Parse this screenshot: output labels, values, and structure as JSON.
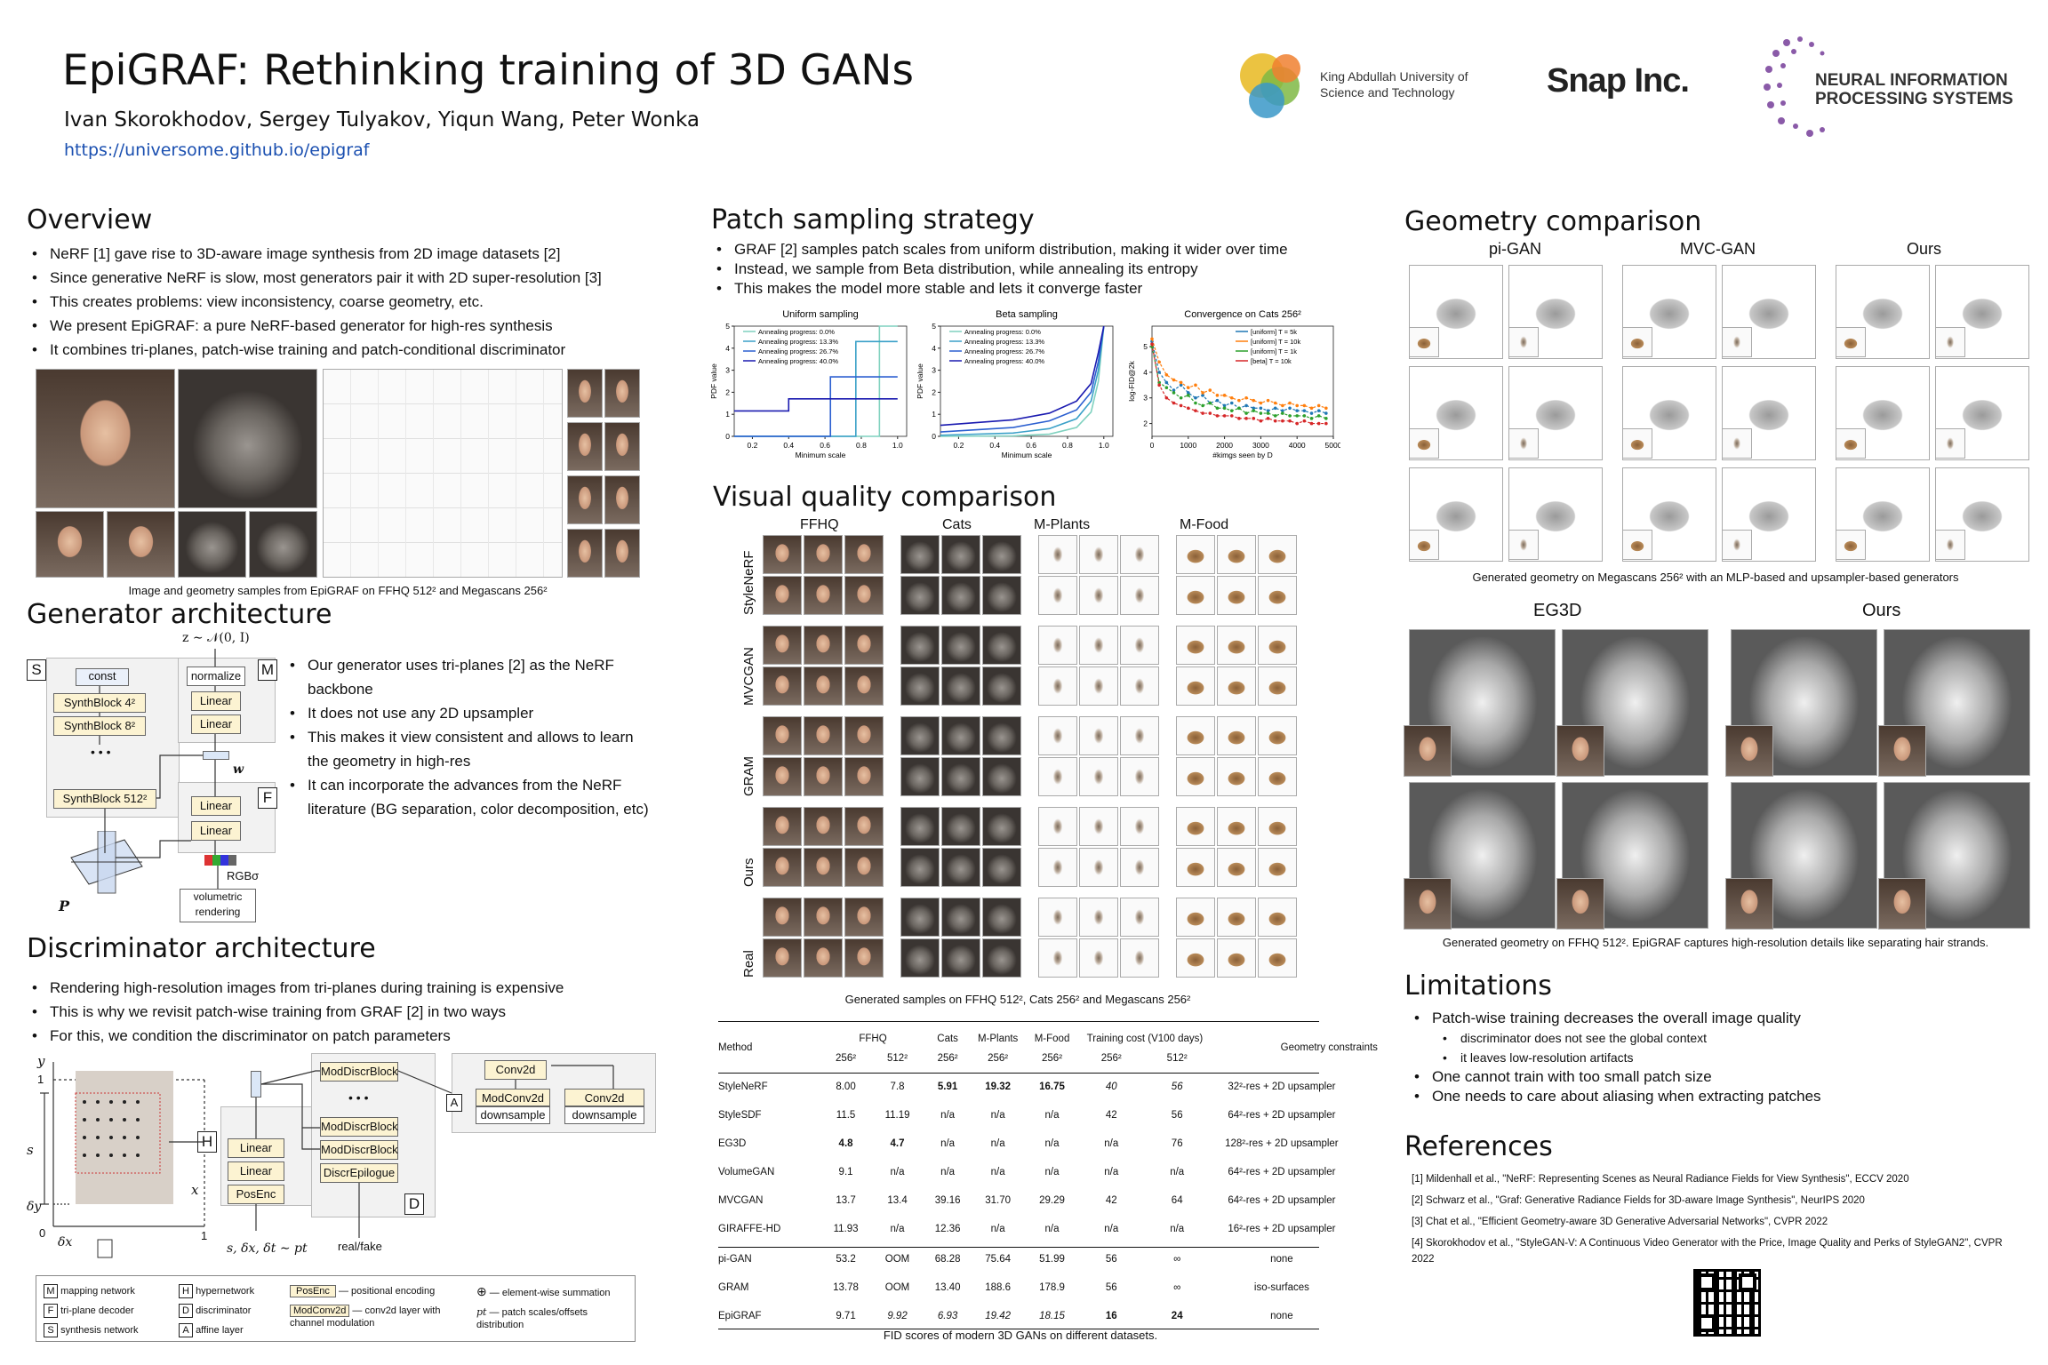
{
  "header": {
    "title": "EpiGRAF: Rethinking training of 3D GANs",
    "authors": "Ivan Skorokhodov, Sergey Tulyakov, Yiqun Wang, Peter Wonka",
    "url": "https://universome.github.io/epigraf",
    "kaust": "King Abdullah University of Science and Technology",
    "snap": "Snap Inc.",
    "neurips": "NEURAL INFORMATION PROCESSING SYSTEMS"
  },
  "overview": {
    "title": "Overview",
    "bullets": [
      "NeRF [1] gave rise to 3D-aware image synthesis from 2D image datasets [2]",
      "Since generative NeRF is slow, most generators pair it with 2D super-resolution [3]",
      "This creates problems: view inconsistency, coarse geometry, etc.",
      "We present EpiGRAF: a pure NeRF-based generator for high-res synthesis",
      "It combines tri-planes, patch-wise training and patch-conditional discriminator"
    ],
    "caption": "Image and geometry samples from EpiGRAF on FFHQ 512² and Megascans 256²"
  },
  "generator": {
    "title": "Generator architecture",
    "bullets": [
      "Our generator uses tri-planes [2] as the NeRF backbone",
      "It does not use any 2D upsampler",
      "This makes it view consistent and allows to learn the geometry in high-res",
      "It can incorporate the advances from the NeRF literature (BG separation, color decomposition, etc)"
    ],
    "z": "z ∼ 𝒩(0, I)",
    "const": "const",
    "sb4": "SynthBlock 4²",
    "sb8": "SynthBlock 8²",
    "dots": "• • •",
    "sb512": "SynthBlock 512²",
    "normalize": "normalize",
    "linear": "Linear",
    "w": "w",
    "rgb": "RGBσ",
    "vol": "volumetric rendering",
    "P": "P",
    "S": "S",
    "M": "M",
    "F": "F"
  },
  "discriminator": {
    "title": "Discriminator architecture",
    "bullets": [
      "Rendering high-resolution images from tri-planes during training is expensive",
      "This is why we revisit patch-wise training from GRAF [2] in two ways",
      "For this, we condition the discriminator on patch parameters"
    ],
    "y": "y",
    "x": "x",
    "one_y": "1",
    "zero": "0",
    "one_x": "1",
    "s": "s",
    "dy": "δy",
    "dx": "δx",
    "sample": "s, δx, δt ∼ pt",
    "linear": "Linear",
    "posenc": "PosEnc",
    "H": "H",
    "A": "A",
    "mdb": "ModDiscrBlock",
    "dots": "• • •",
    "epilogue": "DiscrEpilogue",
    "D": "D",
    "conv": "Conv2d",
    "modconv": "ModConv2d",
    "down": "downsample",
    "realfake": "real/fake",
    "legend": [
      [
        "M",
        "mapping network"
      ],
      [
        "F",
        "tri-plane decoder"
      ],
      [
        "S",
        "synthesis network"
      ],
      [
        "H",
        "hypernetwork"
      ],
      [
        "D",
        "discriminator"
      ],
      [
        "A",
        "affine layer"
      ],
      [
        "PosEnc",
        "positional encoding"
      ],
      [
        "ModConv2d",
        "conv2d layer with channel modulation"
      ],
      [
        "⊕",
        "element-wise summation"
      ],
      [
        "pt",
        "patch scales/offsets distribution"
      ]
    ]
  },
  "patch": {
    "title": "Patch sampling strategy",
    "bullets": [
      "GRAF [2] samples patch scales from uniform distribution, making it wider over time",
      "Instead, we sample from Beta distribution, while annealing its entropy",
      "This makes the model more stable and lets it converge faster"
    ]
  },
  "chart_data": [
    {
      "type": "line",
      "title": "Uniform sampling",
      "xlabel": "Minimum scale",
      "ylabel": "PDF value",
      "xlim": [
        0.1,
        1.05
      ],
      "ylim": [
        0,
        5
      ],
      "xticks": [
        "0.2",
        "0.4",
        "0.6",
        "0.8",
        "1.0"
      ],
      "yticks": [
        "0",
        "1",
        "2",
        "3",
        "4",
        "5"
      ],
      "series": [
        {
          "name": "Annealing progress:  0.0%",
          "color": "#7fd1bf",
          "x": [
            0.1,
            0.9,
            0.9,
            1.0
          ],
          "y": [
            0,
            0,
            5,
            5
          ]
        },
        {
          "name": "Annealing progress: 13.3%",
          "color": "#3aa0c8",
          "x": [
            0.1,
            0.77,
            0.77,
            1.0
          ],
          "y": [
            0,
            0,
            4.3,
            4.3
          ]
        },
        {
          "name": "Annealing progress: 26.7%",
          "color": "#2b5fd0",
          "x": [
            0.1,
            0.63,
            0.63,
            1.0
          ],
          "y": [
            0,
            0,
            2.7,
            2.7
          ]
        },
        {
          "name": "Annealing progress: 40.0%",
          "color": "#1a1ab0",
          "x": [
            0.1,
            0.4,
            0.4,
            1.0
          ],
          "y": [
            1.15,
            1.15,
            1.7,
            1.7
          ]
        }
      ]
    },
    {
      "type": "line",
      "title": "Beta sampling",
      "xlabel": "Minimum scale",
      "ylabel": "PDF value",
      "xlim": [
        0.1,
        1.05
      ],
      "ylim": [
        0,
        5
      ],
      "xticks": [
        "0.2",
        "0.4",
        "0.6",
        "0.8",
        "1.0"
      ],
      "yticks": [
        "0",
        "1",
        "2",
        "3",
        "4",
        "5"
      ],
      "series": [
        {
          "name": "Annealing progress:  0.0%",
          "color": "#7fd1bf",
          "x": [
            0.1,
            0.5,
            0.7,
            0.85,
            0.93,
            0.97,
            1.0
          ],
          "y": [
            0,
            0.02,
            0.1,
            0.4,
            1.1,
            2.5,
            5
          ]
        },
        {
          "name": "Annealing progress: 13.3%",
          "color": "#3aa0c8",
          "x": [
            0.1,
            0.5,
            0.7,
            0.85,
            0.93,
            0.97,
            1.0
          ],
          "y": [
            0.05,
            0.15,
            0.35,
            0.8,
            1.6,
            3.0,
            5
          ]
        },
        {
          "name": "Annealing progress: 26.7%",
          "color": "#2b5fd0",
          "x": [
            0.1,
            0.5,
            0.7,
            0.85,
            0.93,
            0.97,
            1.0
          ],
          "y": [
            0.2,
            0.4,
            0.7,
            1.2,
            2.0,
            3.4,
            5
          ]
        },
        {
          "name": "Annealing progress: 40.0%",
          "color": "#1a1ab0",
          "x": [
            0.1,
            0.5,
            0.7,
            0.85,
            0.93,
            0.97,
            1.0
          ],
          "y": [
            0.5,
            0.75,
            1.05,
            1.6,
            2.4,
            3.8,
            5
          ]
        }
      ]
    },
    {
      "type": "line",
      "title": "Convergence on Cats 256²",
      "xlabel": "#kimgs seen by D",
      "ylabel": "log-FID@2k",
      "xlim": [
        0,
        5000
      ],
      "ylim": [
        1.5,
        5.8
      ],
      "xticks": [
        "0",
        "1000",
        "2000",
        "3000",
        "4000",
        "5000"
      ],
      "yticks": [
        "2",
        "3",
        "4",
        "5"
      ],
      "series": [
        {
          "name": "[uniform] T = 5k",
          "color": "#1f77b4",
          "x": [
            0,
            200,
            400,
            600,
            800,
            1000,
            1200,
            1400,
            1600,
            1800,
            2000,
            2200,
            2400,
            2600,
            2800,
            3000,
            3200,
            3400,
            3600,
            3800,
            4000,
            4200,
            4400,
            4600,
            4800
          ],
          "y": [
            5.2,
            4.0,
            3.6,
            3.3,
            3.5,
            3.2,
            3.0,
            3.1,
            2.8,
            2.9,
            2.7,
            2.8,
            2.6,
            2.7,
            2.6,
            2.6,
            2.5,
            2.6,
            2.5,
            2.6,
            2.5,
            2.5,
            2.4,
            2.5,
            2.4
          ]
        },
        {
          "name": "[uniform] T = 10k",
          "color": "#ff7f0e",
          "x": [
            0,
            200,
            400,
            600,
            800,
            1000,
            1200,
            1400,
            1600,
            1800,
            2000,
            2200,
            2400,
            2600,
            2800,
            3000,
            3200,
            3400,
            3600,
            3800,
            4000,
            4200,
            4400,
            4600,
            4800
          ],
          "y": [
            5.3,
            4.4,
            3.9,
            3.7,
            3.6,
            3.4,
            3.5,
            3.2,
            3.3,
            3.1,
            3.1,
            3.0,
            2.9,
            3.0,
            2.9,
            2.8,
            2.9,
            2.8,
            2.7,
            2.8,
            2.7,
            2.7,
            2.6,
            2.7,
            2.6
          ]
        },
        {
          "name": "[uniform] T = 1k",
          "color": "#2ca02c",
          "x": [
            0,
            200,
            400,
            600,
            800,
            1000,
            1200,
            1400,
            1600,
            1800,
            2000,
            2200,
            2400,
            2600,
            2800,
            3000,
            3200,
            3400,
            3600,
            3800,
            4000,
            4200,
            4400,
            4600,
            4800
          ],
          "y": [
            5.0,
            3.6,
            3.4,
            3.2,
            3.0,
            3.1,
            2.8,
            2.7,
            2.8,
            2.6,
            2.6,
            2.5,
            2.6,
            2.4,
            2.5,
            2.4,
            2.4,
            2.3,
            2.4,
            2.3,
            2.3,
            2.3,
            2.2,
            2.3,
            2.2
          ]
        },
        {
          "name": "[beta] T = 10k",
          "color": "#d62728",
          "x": [
            0,
            200,
            400,
            600,
            800,
            1000,
            1200,
            1400,
            1600,
            1800,
            2000,
            2200,
            2400,
            2600,
            2800,
            3000,
            3200,
            3400,
            3600,
            3800,
            4000,
            4200,
            4400,
            4600,
            4800
          ],
          "y": [
            5.1,
            3.5,
            3.0,
            2.8,
            2.7,
            2.6,
            2.5,
            2.4,
            2.4,
            2.3,
            2.3,
            2.3,
            2.2,
            2.2,
            2.2,
            2.1,
            2.2,
            2.1,
            2.1,
            2.1,
            2.0,
            2.1,
            2.0,
            2.0,
            2.0
          ]
        }
      ]
    },
    {
      "type": "table",
      "title": "FID scores of modern 3D GANs on different datasets.",
      "header1": [
        "Method",
        "FFHQ",
        "",
        "Cats",
        "M-Plants",
        "M-Food",
        "Training cost (V100 days)",
        "",
        "Geometry constraints"
      ],
      "header2": [
        "",
        "256²",
        "512²",
        "256²",
        "256²",
        "256²",
        "256²",
        "512²",
        ""
      ],
      "rows": [
        [
          "StyleNeRF",
          "8.00",
          "7.8",
          "5.91",
          "19.32",
          "16.75",
          "40",
          "56",
          "32²-res + 2D upsampler"
        ],
        [
          "StyleSDF",
          "11.5",
          "11.19",
          "n/a",
          "n/a",
          "n/a",
          "42",
          "56",
          "64²-res + 2D upsampler"
        ],
        [
          "EG3D",
          "4.8",
          "4.7",
          "n/a",
          "n/a",
          "n/a",
          "n/a",
          "76",
          "128²-res + 2D upsampler"
        ],
        [
          "VolumeGAN",
          "9.1",
          "n/a",
          "n/a",
          "n/a",
          "n/a",
          "n/a",
          "n/a",
          "64²-res + 2D upsampler"
        ],
        [
          "MVCGAN",
          "13.7",
          "13.4",
          "39.16",
          "31.70",
          "29.29",
          "42",
          "64",
          "64²-res + 2D upsampler"
        ],
        [
          "GIRAFFE-HD",
          "11.93",
          "n/a",
          "12.36",
          "n/a",
          "n/a",
          "n/a",
          "n/a",
          "16²-res + 2D upsampler"
        ],
        [
          "pi-GAN",
          "53.2",
          "OOM",
          "68.28",
          "75.64",
          "51.99",
          "56",
          "∞",
          "none"
        ],
        [
          "GRAM",
          "13.78",
          "OOM",
          "13.40",
          "188.6",
          "178.9",
          "56",
          "∞",
          "iso-surfaces"
        ],
        [
          "EpiGRAF",
          "9.71",
          "9.92",
          "6.93",
          "19.42",
          "18.15",
          "16",
          "24",
          "none"
        ]
      ],
      "bold": [
        [
          0,
          3
        ],
        [
          0,
          4
        ],
        [
          0,
          5
        ],
        [
          2,
          1
        ],
        [
          2,
          2
        ],
        [
          8,
          6
        ],
        [
          8,
          7
        ]
      ],
      "italic": [
        [
          0,
          6
        ],
        [
          0,
          7
        ],
        [
          8,
          2
        ],
        [
          8,
          3
        ],
        [
          8,
          4
        ],
        [
          8,
          5
        ]
      ]
    }
  ],
  "visual": {
    "title": "Visual quality comparison",
    "cols": [
      "FFHQ",
      "Cats",
      "M-Plants",
      "M-Food"
    ],
    "rows": [
      "StyleNeRF",
      "MVCGAN",
      "GRAM",
      "Ours",
      "Real"
    ],
    "caption": "Generated samples on FFHQ 512², Cats 256² and Megascans 256²"
  },
  "geometry": {
    "title": "Geometry comparison",
    "cols": [
      "pi-GAN",
      "MVC-GAN",
      "Ours"
    ],
    "caption1": "Generated geometry on Megascans 256² with an MLP-based and upsampler-based generators",
    "cols2": [
      "EG3D",
      "Ours"
    ],
    "caption2": "Generated geometry on FFHQ 512². EpiGRAF captures high-resolution details like separating hair strands."
  },
  "limitations": {
    "title": "Limitations",
    "items": [
      {
        "t": "Patch-wise training decreases the overall image quality",
        "sub": false
      },
      {
        "t": "discriminator does not see the global context",
        "sub": true
      },
      {
        "t": "it leaves low-resolution artifacts",
        "sub": true
      },
      {
        "t": "One cannot train with too small patch size",
        "sub": false
      },
      {
        "t": "One needs to care about aliasing when extracting patches",
        "sub": false
      }
    ]
  },
  "references": {
    "title": "References",
    "items": [
      "[1] Mildenhall et al., \"NeRF: Representing Scenes as Neural Radiance Fields for View Synthesis\", ECCV 2020",
      "[2] Schwarz et al., \"Graf: Generative Radiance Fields for 3D-aware Image Synthesis\", NeurIPS 2020",
      "[3] Chat et al., \"Efficient Geometry-aware 3D Generative Adversarial Networks\", CVPR 2022",
      "[4] Skorokhodov et al., \"StyleGAN-V: A Continuous Video Generator with the Price, Image Quality and Perks of StyleGAN2\", CVPR 2022"
    ]
  }
}
